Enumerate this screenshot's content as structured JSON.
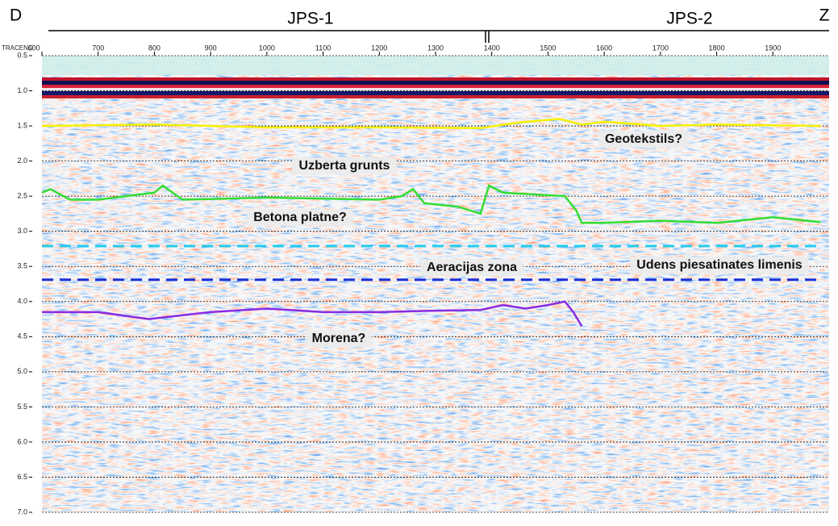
{
  "chart_data": {
    "type": "line",
    "left_label": "D",
    "right_label": "Z",
    "section_labels": [
      "JPS-1",
      "JPS-2"
    ],
    "x_label": "TRACENO",
    "xlim": [
      600,
      2000
    ],
    "xticks": [
      600,
      700,
      800,
      900,
      1000,
      1100,
      1200,
      1300,
      1400,
      1500,
      1600,
      1700,
      1800,
      1900
    ],
    "ylim": [
      0.5,
      7.0
    ],
    "yticks": [
      0.5,
      {
        "value": 1,
        "label": "1.0"
      },
      1.5,
      {
        "value": 2,
        "label": "2.0"
      },
      2.5,
      {
        "value": 3,
        "label": "3.0"
      },
      3.5,
      {
        "value": 4,
        "label": "4.0"
      },
      4.5,
      {
        "value": 5,
        "label": "5.0"
      },
      5.5,
      {
        "value": 6,
        "label": "6.0"
      },
      6.5,
      {
        "value": 7,
        "label": "7.0"
      }
    ],
    "y_inverted": true,
    "grid": true,
    "series": [
      {
        "color": "#f5f000",
        "style": "solid",
        "x": [
          600,
          800,
          1000,
          1200,
          1380,
          1450,
          1520,
          1560,
          1600,
          1700,
          1800,
          1985
        ],
        "values": [
          1.5,
          1.48,
          1.52,
          1.52,
          1.53,
          1.45,
          1.4,
          1.48,
          1.44,
          1.5,
          1.48,
          1.5
        ]
      },
      {
        "color": "#33dd33",
        "style": "solid",
        "x": [
          600,
          615,
          650,
          700,
          750,
          800,
          815,
          850,
          1000,
          1200,
          1240,
          1260,
          1280,
          1340,
          1380,
          1395,
          1420,
          1530,
          1550,
          1560,
          1600,
          1700,
          1800,
          1900,
          1985
        ],
        "values": [
          2.45,
          2.4,
          2.55,
          2.55,
          2.5,
          2.45,
          2.35,
          2.55,
          2.52,
          2.55,
          2.5,
          2.4,
          2.6,
          2.65,
          2.75,
          2.35,
          2.45,
          2.5,
          2.7,
          2.88,
          2.88,
          2.85,
          2.88,
          2.8,
          2.87
        ]
      },
      {
        "color": "#22ccee",
        "style": "dashed",
        "x": [
          600,
          1985
        ],
        "values": [
          3.21,
          3.21
        ]
      },
      {
        "color": "#1a2fd6",
        "style": "dashed",
        "x": [
          600,
          1985
        ],
        "values": [
          3.69,
          3.69
        ]
      },
      {
        "color": "#8a2be2",
        "style": "solid",
        "x": [
          600,
          700,
          790,
          900,
          1000,
          1100,
          1200,
          1300,
          1380,
          1420,
          1460,
          1500,
          1530,
          1545,
          1560
        ],
        "values": [
          4.15,
          4.15,
          4.25,
          4.15,
          4.1,
          4.15,
          4.15,
          4.13,
          4.12,
          4.05,
          4.1,
          4.05,
          4.0,
          4.15,
          4.35
        ]
      }
    ],
    "annotations": [
      "Geotekstils?",
      "Uzberta grunts",
      "Betona platne?",
      "Aeracijas zona",
      "Udens piesatinates limenis",
      "Morena?"
    ]
  }
}
